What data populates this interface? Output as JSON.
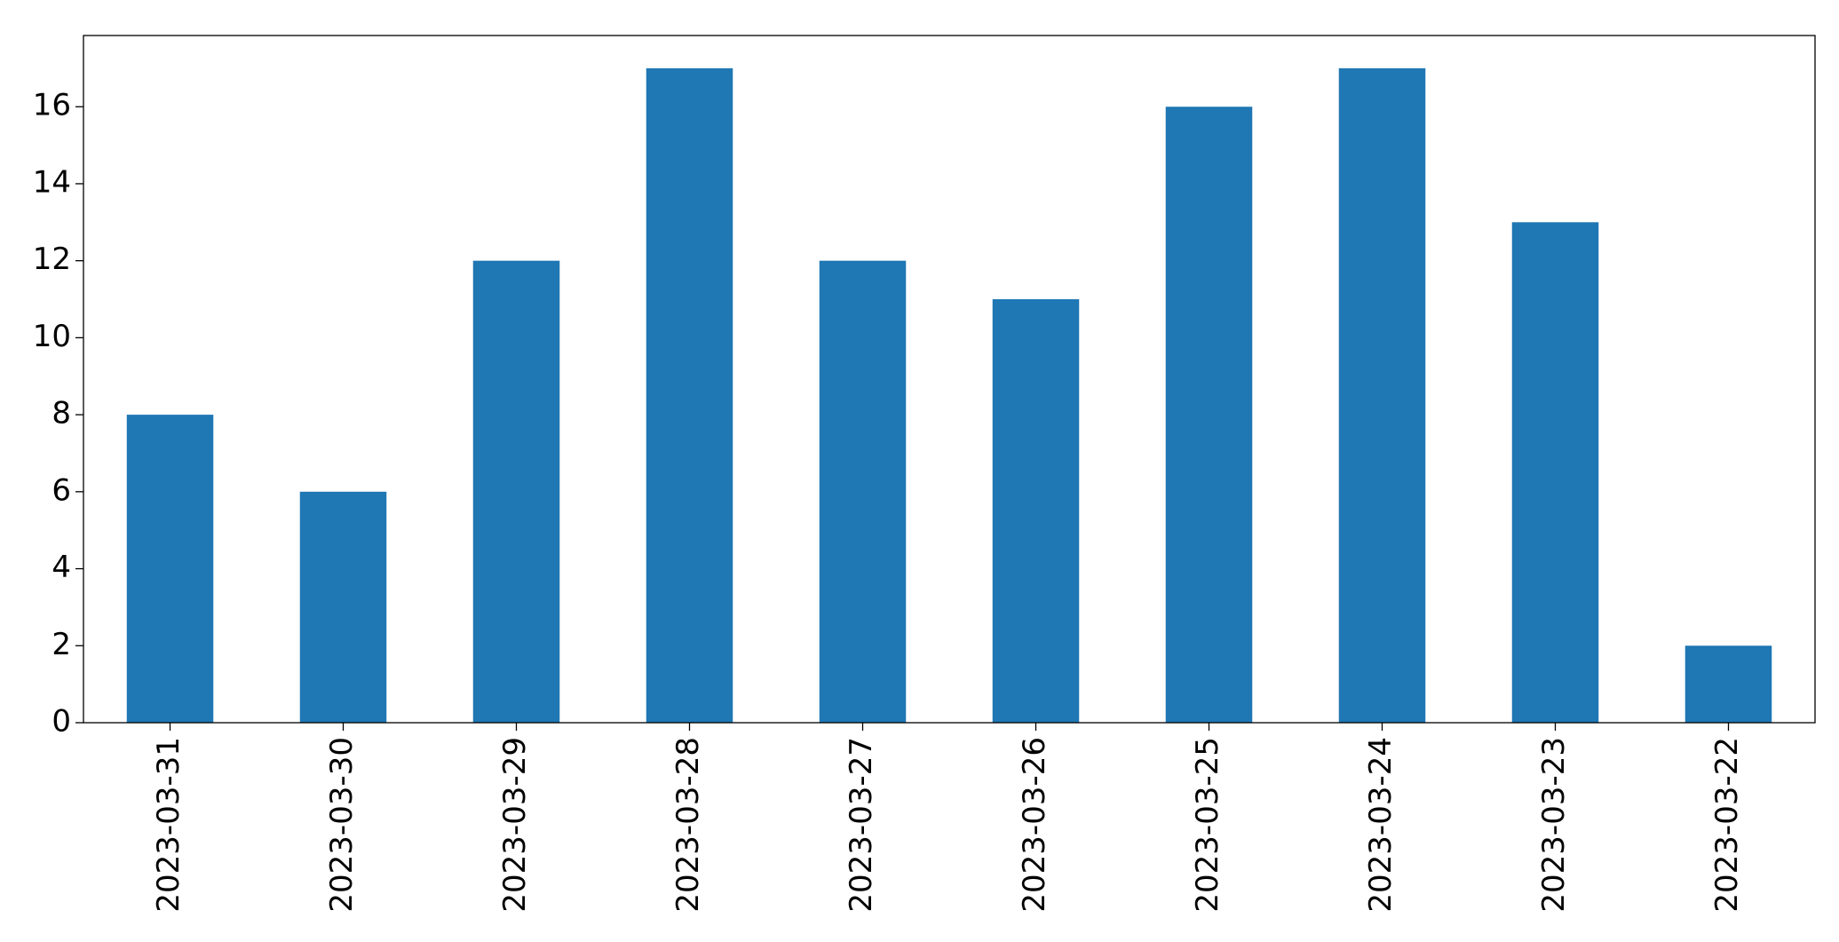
{
  "chart_data": {
    "type": "bar",
    "categories": [
      "2023-03-31",
      "2023-03-30",
      "2023-03-29",
      "2023-03-28",
      "2023-03-27",
      "2023-03-26",
      "2023-03-25",
      "2023-03-24",
      "2023-03-23",
      "2023-03-22"
    ],
    "values": [
      8,
      6,
      12,
      17,
      12,
      11,
      16,
      17,
      13,
      2
    ],
    "color": "#1f77b4",
    "ylim": [
      0,
      17.85
    ],
    "yticks": [
      0,
      2,
      4,
      6,
      8,
      10,
      12,
      14,
      16
    ],
    "grid": false
  }
}
